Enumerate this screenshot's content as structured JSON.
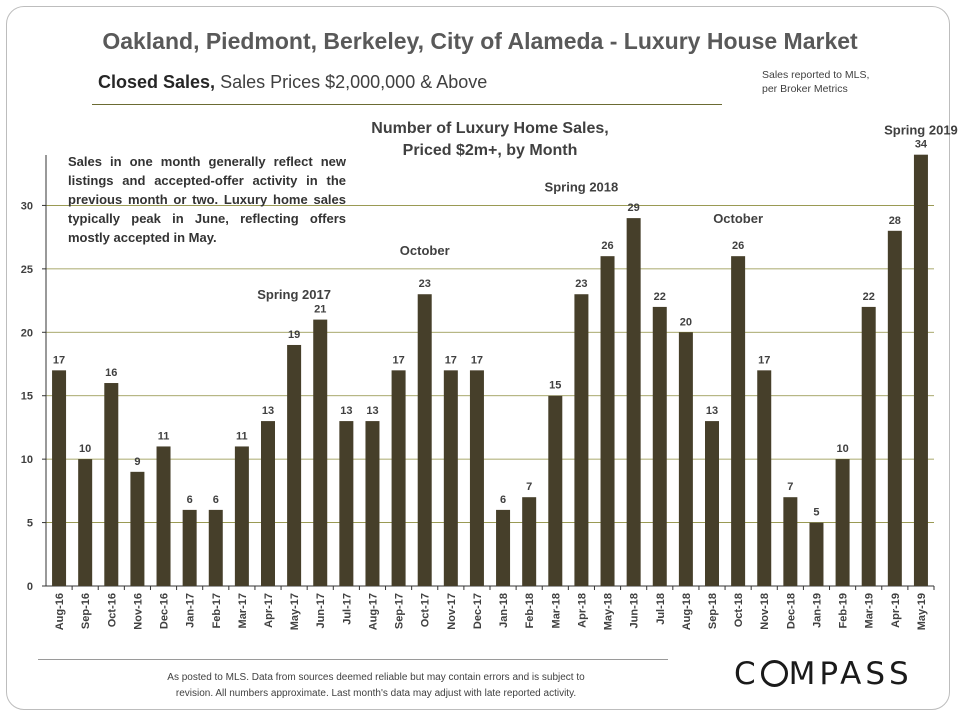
{
  "header": {
    "title": "Oakland, Piedmont, Berkeley, City of Alameda - Luxury House Market",
    "subtitle_bold": "Closed Sales,",
    "subtitle_rest": "Sales Prices $2,000,000 & Above",
    "source_line1": "Sales reported  to MLS,",
    "source_line2": "per Broker Metrics"
  },
  "chart_data": {
    "type": "bar",
    "title_line1": "Number of Luxury Home Sales,",
    "title_line2": "Priced $2m+, by Month",
    "categories": [
      "Aug-16",
      "Sep-16",
      "Oct-16",
      "Nov-16",
      "Dec-16",
      "Jan-17",
      "Feb-17",
      "Mar-17",
      "Apr-17",
      "May-17",
      "Jun-17",
      "Jul-17",
      "Aug-17",
      "Sep-17",
      "Oct-17",
      "Nov-17",
      "Dec-17",
      "Jan-18",
      "Feb-18",
      "Mar-18",
      "Apr-18",
      "May-18",
      "Jun-18",
      "Jul-18",
      "Aug-18",
      "Sep-18",
      "Oct-18",
      "Nov-18",
      "Dec-18",
      "Jan-19",
      "Feb-19",
      "Mar-19",
      "Apr-19",
      "May-19"
    ],
    "values": [
      17,
      10,
      16,
      9,
      11,
      6,
      6,
      11,
      13,
      19,
      21,
      13,
      13,
      17,
      23,
      17,
      17,
      6,
      7,
      15,
      23,
      26,
      29,
      22,
      20,
      13,
      26,
      17,
      7,
      5,
      10,
      22,
      28,
      34
    ],
    "ylim": [
      0,
      35
    ],
    "yticks": [
      0,
      5,
      10,
      15,
      20,
      25,
      30
    ],
    "grid": true,
    "bar_color": "#463f2a",
    "grid_color": "#8c8c3c",
    "annotations": [
      {
        "text": "Spring 2017",
        "category": "May-17",
        "value": 23
      },
      {
        "text": "October",
        "category": "Oct-17",
        "value": 26.5
      },
      {
        "text": "Spring 2018",
        "category": "Apr-18",
        "value": 31.5
      },
      {
        "text": "October",
        "category": "Oct-18",
        "value": 29
      },
      {
        "text": "Spring 2019",
        "category": "May-19",
        "value": 36
      }
    ],
    "note": "Sales in one month generally reflect new listings and accepted-offer activity in the previous month or two. Luxury home sales typically peak in June, reflecting offers mostly accepted in May."
  },
  "footer": {
    "disclaimer_line1": "As posted to MLS. Data from sources deemed reliable but may contain errors and is subject to",
    "disclaimer_line2": "revision. All numbers approximate. Last month's data may adjust with late reported activity.",
    "logo_text": "COMPASS"
  }
}
